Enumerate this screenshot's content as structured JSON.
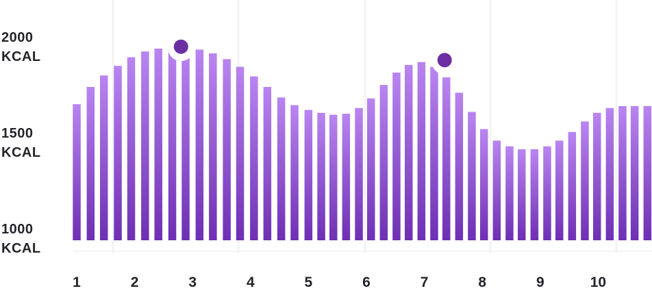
{
  "chart_data": {
    "type": "bar",
    "title": "",
    "xlabel": "",
    "ylabel": "",
    "unit": "KCAL",
    "ylim": [
      1000,
      2000
    ],
    "y_ticks": [
      {
        "value": 2000,
        "line1": "2000",
        "line2": "KCAL"
      },
      {
        "value": 1500,
        "line1": "1500",
        "line2": "KCAL"
      },
      {
        "value": 1000,
        "line1": "1000",
        "line2": "KCAL"
      }
    ],
    "x_ticks": [
      {
        "label": "1",
        "x": 1.0
      },
      {
        "label": "2",
        "x": 2.0
      },
      {
        "label": "3",
        "x": 3.0
      },
      {
        "label": "4",
        "x": 4.0
      },
      {
        "label": "5",
        "x": 5.0
      },
      {
        "label": "6",
        "x": 6.0
      },
      {
        "label": "7",
        "x": 7.0
      },
      {
        "label": "8",
        "x": 8.0
      },
      {
        "label": "9",
        "x": 9.0
      },
      {
        "label": "10",
        "x": 10.0
      }
    ],
    "x": [
      1.0,
      1.24,
      1.47,
      1.71,
      1.94,
      2.18,
      2.41,
      2.65,
      2.88,
      3.12,
      3.35,
      3.59,
      3.82,
      4.06,
      4.29,
      4.53,
      4.76,
      5.0,
      5.22,
      5.43,
      5.65,
      5.87,
      6.08,
      6.3,
      6.52,
      6.73,
      6.95,
      7.17,
      7.38,
      7.6,
      7.82,
      8.03,
      8.25,
      8.47,
      8.68,
      8.9,
      9.12,
      9.33,
      9.55,
      9.77,
      9.98,
      10.2,
      10.42,
      10.63,
      10.85
    ],
    "values": [
      1710,
      1800,
      1860,
      1910,
      1955,
      1985,
      2000,
      2005,
      2000,
      1995,
      1975,
      1945,
      1905,
      1855,
      1800,
      1745,
      1705,
      1680,
      1665,
      1655,
      1660,
      1690,
      1740,
      1810,
      1875,
      1915,
      1930,
      1905,
      1850,
      1770,
      1670,
      1580,
      1520,
      1490,
      1475,
      1475,
      1490,
      1520,
      1565,
      1620,
      1665,
      1690,
      1700,
      1700,
      1700
    ],
    "highlights": [
      {
        "x": 2.8,
        "value": 2010
      },
      {
        "x": 7.35,
        "value": 1940
      }
    ],
    "grid": true,
    "gradient_colors": [
      "#b985f0",
      "#6e2fb3"
    ],
    "marker_color": "#6b2fa3",
    "grid_color": "#f3f3f6"
  }
}
